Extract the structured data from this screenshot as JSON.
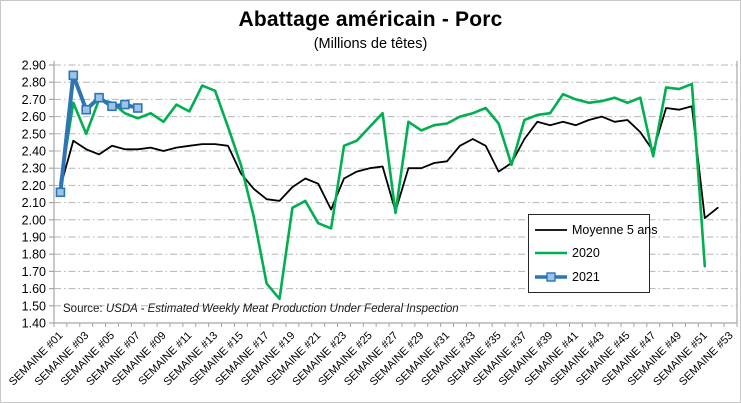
{
  "chart_data": {
    "type": "line",
    "title": "Abattage américain - Porc",
    "subtitle": "(Millions de têtes)",
    "source_prefix": "Source:",
    "source_text": "USDA - Estimated Weekly Meat Production Under Federal Inspection",
    "n_weeks": 53,
    "ylim": [
      1.4,
      2.9
    ],
    "y_tick_step": 0.1,
    "y_tick_labels": [
      "1.40",
      "1.50",
      "1.60",
      "1.70",
      "1.80",
      "1.90",
      "2.00",
      "2.10",
      "2.20",
      "2.30",
      "2.40",
      "2.50",
      "2.60",
      "2.70",
      "2.80",
      "2.90"
    ],
    "x_tick_labels": [
      "SEMAINE #01",
      "SEMAINE #03",
      "SEMAINE #05",
      "SEMAINE #07",
      "SEMAINE #09",
      "SEMAINE #11",
      "SEMAINE #13",
      "SEMAINE #15",
      "SEMAINE #17",
      "SEMAINE #19",
      "SEMAINE #21",
      "SEMAINE #23",
      "SEMAINE #25",
      "SEMAINE #27",
      "SEMAINE #29",
      "SEMAINE #31",
      "SEMAINE #33",
      "SEMAINE #35",
      "SEMAINE #37",
      "SEMAINE #39",
      "SEMAINE #41",
      "SEMAINE #43",
      "SEMAINE #45",
      "SEMAINE #47",
      "SEMAINE #49",
      "SEMAINE #51",
      "SEMAINE #53"
    ],
    "grid": "horizontal-dash-dot",
    "legend_position": "inside-right",
    "colors": {
      "average": "#000000",
      "y2020": "#00B050",
      "y2021": "#2E75B6",
      "y2021_marker_fill": "#9DC3E6",
      "gridline": "#b5b5b5",
      "axis": "#a6a6a6"
    },
    "series": [
      {
        "name": "Moyenne 5 ans",
        "color": "#000000",
        "line_width": 1.8,
        "marker": null,
        "values": [
          2.19,
          2.46,
          2.41,
          2.38,
          2.43,
          2.41,
          2.41,
          2.42,
          2.4,
          2.42,
          2.43,
          2.44,
          2.44,
          2.43,
          2.27,
          2.18,
          2.12,
          2.11,
          2.19,
          2.24,
          2.21,
          2.06,
          2.24,
          2.28,
          2.3,
          2.31,
          2.05,
          2.3,
          2.3,
          2.33,
          2.34,
          2.43,
          2.47,
          2.43,
          2.28,
          2.33,
          2.47,
          2.57,
          2.55,
          2.57,
          2.55,
          2.58,
          2.6,
          2.57,
          2.58,
          2.51,
          2.4,
          2.65,
          2.64,
          2.66,
          2.01,
          2.07,
          null
        ]
      },
      {
        "name": "2020",
        "color": "#00B050",
        "line_width": 2.6,
        "marker": null,
        "values": [
          2.21,
          2.68,
          2.5,
          2.7,
          2.68,
          2.62,
          2.59,
          2.62,
          2.57,
          2.67,
          2.63,
          2.78,
          2.75,
          2.54,
          2.32,
          2.02,
          1.63,
          1.54,
          2.07,
          2.11,
          1.98,
          1.95,
          2.43,
          2.46,
          2.54,
          2.62,
          2.04,
          2.57,
          2.52,
          2.55,
          2.56,
          2.6,
          2.62,
          2.65,
          2.56,
          2.32,
          2.58,
          2.61,
          2.62,
          2.73,
          2.7,
          2.68,
          2.69,
          2.71,
          2.68,
          2.71,
          2.37,
          2.77,
          2.76,
          2.79,
          1.73,
          null,
          null
        ]
      },
      {
        "name": "2021",
        "color": "#2E75B6",
        "line_width": 4,
        "marker": {
          "shape": "square",
          "size": 8,
          "fill": "#9DC3E6",
          "stroke": "#2E75B6"
        },
        "values": [
          2.16,
          2.84,
          2.64,
          2.71,
          2.66,
          2.67,
          2.65,
          null,
          null,
          null,
          null,
          null,
          null,
          null,
          null,
          null,
          null,
          null,
          null,
          null,
          null,
          null,
          null,
          null,
          null,
          null,
          null,
          null,
          null,
          null,
          null,
          null,
          null,
          null,
          null,
          null,
          null,
          null,
          null,
          null,
          null,
          null,
          null,
          null,
          null,
          null,
          null,
          null,
          null,
          null,
          null,
          null,
          null
        ]
      }
    ]
  }
}
